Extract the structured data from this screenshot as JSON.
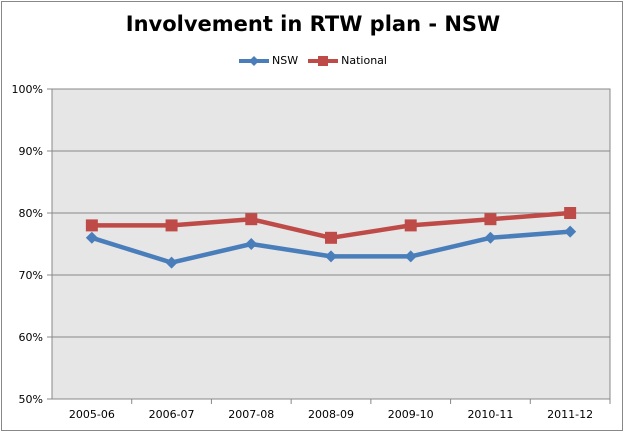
{
  "chart_data": {
    "type": "line",
    "title": "Involvement in RTW plan - NSW",
    "xlabel": "",
    "ylabel": "",
    "categories": [
      "2005-06",
      "2006-07",
      "2007-08",
      "2008-09",
      "2009-10",
      "2010-11",
      "2011-12"
    ],
    "series": [
      {
        "name": "NSW",
        "values": [
          76,
          72,
          75,
          73,
          73,
          76,
          77
        ],
        "color": "#4A7EBB",
        "marker": "diamond"
      },
      {
        "name": "National",
        "values": [
          78,
          78,
          79,
          76,
          78,
          79,
          80
        ],
        "color": "#BE4B48",
        "marker": "square"
      }
    ],
    "ylim": [
      50,
      100
    ],
    "yticks": [
      "50%",
      "60%",
      "70%",
      "80%",
      "90%",
      "100%"
    ],
    "grid": true,
    "legend_position": "top",
    "plot_background": "#E6E6E6"
  }
}
